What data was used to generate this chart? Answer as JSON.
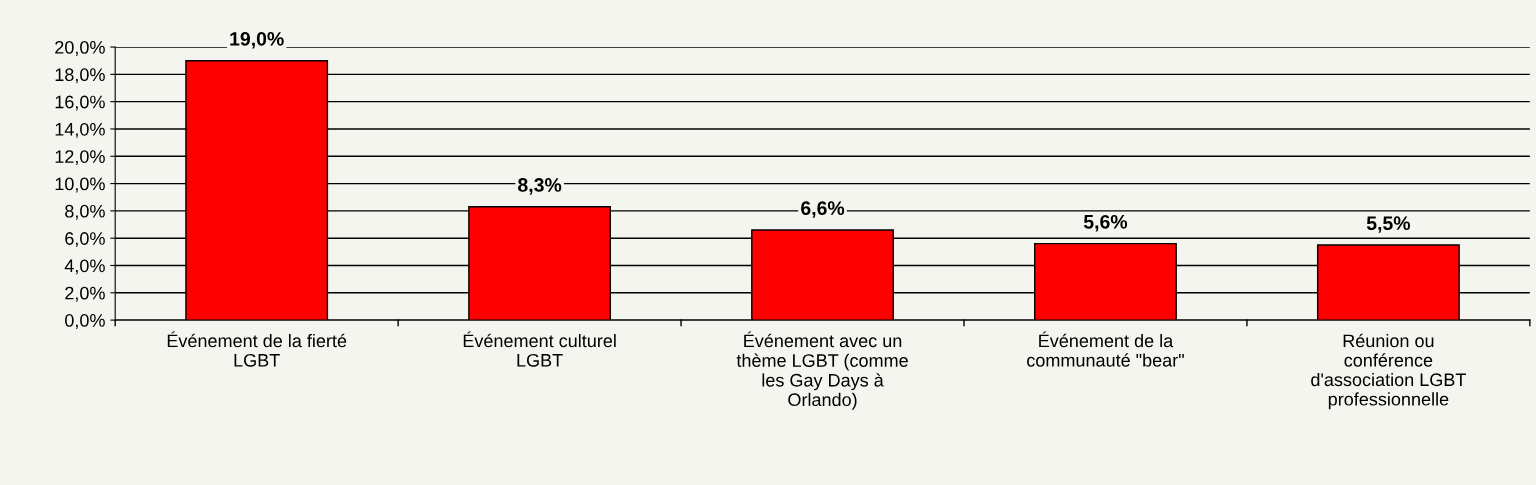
{
  "chart_data": {
    "type": "bar",
    "categories": [
      "Événement de la fierté\nLGBT",
      "Événement culturel\nLGBT",
      "Événement avec un\nthème LGBT (comme\nles Gay Days à\nOrlando)",
      "Événement de la\ncommunauté \"bear\"",
      "Réunion ou\nconférence\nd'association LGBT\nprofessionnelle"
    ],
    "values": [
      19.0,
      8.3,
      6.6,
      5.6,
      5.5
    ],
    "value_labels": [
      "19,0%",
      "8,3%",
      "6,6%",
      "5,6%",
      "5,5%"
    ],
    "color": "#ff0000",
    "ylim": [
      0,
      20
    ],
    "yticks": [
      {
        "value": 0,
        "label": "0,0%"
      },
      {
        "value": 2,
        "label": "2,0%"
      },
      {
        "value": 4,
        "label": "4,0%"
      },
      {
        "value": 6,
        "label": "6,0%"
      },
      {
        "value": 8,
        "label": "8,0%"
      },
      {
        "value": 10,
        "label": "10,0%"
      },
      {
        "value": 12,
        "label": "12,0%"
      },
      {
        "value": 14,
        "label": "14,0%"
      },
      {
        "value": 16,
        "label": "16,0%"
      },
      {
        "value": 18,
        "label": "18,0%"
      },
      {
        "value": 20,
        "label": "20,0%"
      }
    ],
    "grid": "y"
  }
}
